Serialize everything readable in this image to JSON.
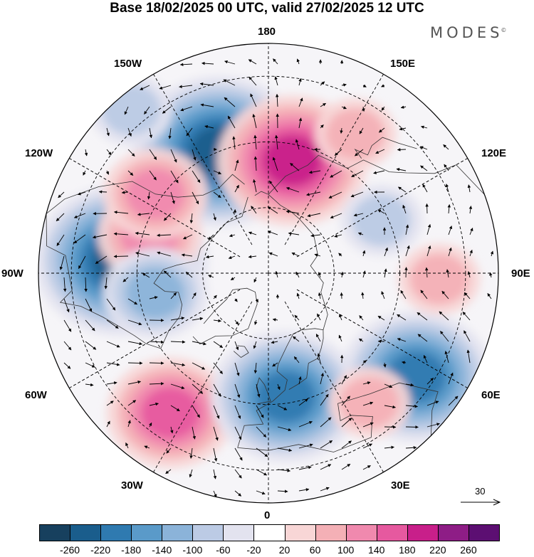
{
  "title": "Base 18/02/2025 00 UTC, valid 27/02/2025 12 UTC",
  "brand": "MODES",
  "brand_mark": "©",
  "longitude_labels": {
    "n180": "180",
    "w150": "150W",
    "e150": "150E",
    "w120": "120W",
    "e120": "120E",
    "w90": "90W",
    "e90": "90E",
    "w60": "60W",
    "e60": "60E",
    "w30": "30W",
    "e30": "30E",
    "s0": "0"
  },
  "reference_vector": {
    "label": "30",
    "value": 30
  },
  "colorbar": {
    "ticks": [
      "-260",
      "-220",
      "-180",
      "-140",
      "-100",
      "-60",
      "-20",
      "20",
      "60",
      "100",
      "140",
      "180",
      "220",
      "260"
    ],
    "colors": [
      "#17405e",
      "#1a5d8c",
      "#2f7ab0",
      "#5a9ac9",
      "#8bb3d9",
      "#bccbe5",
      "#e3e3ef",
      "#ffffff",
      "#f8d6d6",
      "#f4b0b6",
      "#f089ae",
      "#e6599f",
      "#c81f8a",
      "#8e1d86",
      "#5c0f72"
    ]
  },
  "anomalies": [
    {
      "lon": -158,
      "lat": 50,
      "value": -240,
      "sign": "neg"
    },
    {
      "lon": 168,
      "lat": 55,
      "value": 190,
      "sign": "pos"
    },
    {
      "lon": -95,
      "lat": 45,
      "value": -230,
      "sign": "neg"
    },
    {
      "lon": -108,
      "lat": 52,
      "value": 110,
      "sign": "pos"
    },
    {
      "lon": -125,
      "lat": 48,
      "value": 120,
      "sign": "pos"
    },
    {
      "lon": -80,
      "lat": 55,
      "value": -120,
      "sign": "neg"
    },
    {
      "lon": -35,
      "lat": 38,
      "value": 170,
      "sign": "pos"
    },
    {
      "lon": 8,
      "lat": 52,
      "value": -210,
      "sign": "neg"
    },
    {
      "lon": 55,
      "lat": 35,
      "value": -200,
      "sign": "neg"
    },
    {
      "lon": 38,
      "lat": 40,
      "value": 70,
      "sign": "pos"
    },
    {
      "lon": 88,
      "lat": 38,
      "value": 70,
      "sign": "pos"
    },
    {
      "lon": 115,
      "lat": 52,
      "value": -90,
      "sign": "neg"
    },
    {
      "lon": 148,
      "lat": 40,
      "value": 60,
      "sign": "pos"
    },
    {
      "lon": -140,
      "lat": 25,
      "value": -80,
      "sign": "neg"
    }
  ]
}
